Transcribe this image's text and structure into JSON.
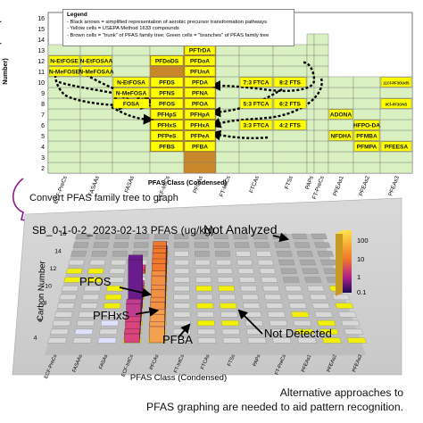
{
  "top_chart": {
    "y_axis_title": "Total Number of Carbons in Compound (Carbon Number)",
    "x_axis_title": "PFAS Class (Condensed)",
    "y_ticks": [
      "2",
      "3",
      "4",
      "5",
      "6",
      "7",
      "8",
      "9",
      "10",
      "11",
      "12",
      "13",
      "14",
      "15",
      "16"
    ],
    "x_categories": [
      "ECF-PreCs",
      "FASAAs",
      "FASAs",
      "ECF-IntCs",
      "PFCAs",
      "FT-IntCs",
      "FTCAs",
      "FTSs",
      "PAPs",
      "FT-PreCs",
      "PFEAs1",
      "PFEAs2",
      "PFEAs3"
    ],
    "legend": {
      "title": "Legend",
      "items": [
        "- Black arrows = simplified representation of aerobic precursor transformation pathways",
        "- Yellow cells = USEPA Method 1633 compounds",
        "- Brown cells = \"trunk\" of PFAS family tree; Green cells = \"branches\" of PFAS family tree"
      ]
    },
    "colors": {
      "green": "#d9f0c0",
      "yellow": "#ffff00",
      "brown": "#c8882a",
      "border": "#7a7a7a",
      "arrow": "#000000"
    },
    "compound_labels": [
      {
        "text": "N-EtFOSE",
        "col": "ECF-PreCs",
        "carbon": 12
      },
      {
        "text": "N-MeFOSE",
        "col": "ECF-PreCs",
        "carbon": 11
      },
      {
        "text": "N-EtFOSAA",
        "col": "FASAAs",
        "carbon": 12
      },
      {
        "text": "N-MeFOSAA",
        "col": "FASAAs",
        "carbon": 11
      },
      {
        "text": "N-EtFOSA",
        "col": "FASAs",
        "carbon": 10
      },
      {
        "text": "N-MeFOSA",
        "col": "FASAs",
        "carbon": 9
      },
      {
        "text": "FOSA",
        "col": "FASAs",
        "carbon": 8
      },
      {
        "text": "PFDoDS",
        "col": "ECF-IntCs",
        "carbon": 12
      },
      {
        "text": "PFDS",
        "col": "ECF-IntCs",
        "carbon": 10
      },
      {
        "text": "PFNS",
        "col": "ECF-IntCs",
        "carbon": 9
      },
      {
        "text": "PFOS",
        "col": "ECF-IntCs",
        "carbon": 8
      },
      {
        "text": "PFHpS",
        "col": "ECF-IntCs",
        "carbon": 7
      },
      {
        "text": "PFHxS",
        "col": "ECF-IntCs",
        "carbon": 6
      },
      {
        "text": "PFPeS",
        "col": "ECF-IntCs",
        "carbon": 5
      },
      {
        "text": "PFBS",
        "col": "ECF-IntCs",
        "carbon": 4
      },
      {
        "text": "PFTeDA",
        "col": "PFCAs",
        "carbon": 14
      },
      {
        "text": "PFTrDA",
        "col": "PFCAs",
        "carbon": 13
      },
      {
        "text": "PFDoA",
        "col": "PFCAs",
        "carbon": 12
      },
      {
        "text": "PFUnA",
        "col": "PFCAs",
        "carbon": 11
      },
      {
        "text": "PFDA",
        "col": "PFCAs",
        "carbon": 10
      },
      {
        "text": "PFNA",
        "col": "PFCAs",
        "carbon": 9
      },
      {
        "text": "PFOA",
        "col": "PFCAs",
        "carbon": 8
      },
      {
        "text": "PFHpA",
        "col": "PFCAs",
        "carbon": 7
      },
      {
        "text": "PFHxA",
        "col": "PFCAs",
        "carbon": 6
      },
      {
        "text": "PFPeA",
        "col": "PFCAs",
        "carbon": 5
      },
      {
        "text": "PFBA",
        "col": "PFCAs",
        "carbon": 4
      },
      {
        "text": "7:3 FTCA",
        "col": "FTCAs",
        "carbon": 10
      },
      {
        "text": "5:3 FTCA",
        "col": "FTCAs",
        "carbon": 8
      },
      {
        "text": "3:3 FTCA",
        "col": "FTCAs",
        "carbon": 6
      },
      {
        "text": "8:2 FTS",
        "col": "FTSs",
        "carbon": 10
      },
      {
        "text": "6:2 FTS",
        "col": "FTSs",
        "carbon": 8
      },
      {
        "text": "4:2 FTS",
        "col": "FTSs",
        "carbon": 6
      },
      {
        "text": "11Cl-PF3OUdS",
        "col": "PFEAs3",
        "carbon": 10
      },
      {
        "text": "9Cl-PF3ONS",
        "col": "PFEAs3",
        "carbon": 8
      },
      {
        "text": "ADONA",
        "col": "PFEAs1",
        "carbon": 7
      },
      {
        "text": "HFPO-DA",
        "col": "PFEAs2",
        "carbon": 6
      },
      {
        "text": "NFDHA",
        "col": "PFEAs1",
        "carbon": 5
      },
      {
        "text": "PFMBA",
        "col": "PFEAs2",
        "carbon": 5
      },
      {
        "text": "PFMPA",
        "col": "PFEAs2",
        "carbon": 4
      },
      {
        "text": "PFEESA",
        "col": "PFEAs3",
        "carbon": 4
      }
    ]
  },
  "caption_convert": "Convert PFAS family tree to graph",
  "graph3d": {
    "title": "SB_0-1-0-2_2023-02-13 PFAS (ug/kg)",
    "y_axis_title": "Carbon Number",
    "x_axis_title": "PFAS Class (Condensed)",
    "y_ticks": [
      "4",
      "6",
      "8",
      "10",
      "12",
      "14",
      "16"
    ],
    "x_categories": [
      "ECF-PreCs",
      "FASAAs",
      "FASAs",
      "ECF-IntCs",
      "PFCAs",
      "FT-IntCs",
      "FTCAs",
      "FTSs",
      "PAPs",
      "FT-PreCs",
      "PFEAs1",
      "PFEAs2",
      "PFEAs3"
    ],
    "colorbar_ticks": [
      "100",
      "10",
      "1",
      "0.1"
    ],
    "annotations": {
      "not_analyzed": "Not Analyzed",
      "pfos": "PFOS",
      "pfhxs": "PFHxS",
      "pfba": "PFBA",
      "not_detected": "Not Detected"
    },
    "detected_bars": [
      {
        "compound": "PFOS",
        "carbon": 8,
        "level": 1.0
      },
      {
        "compound": "PFHxS",
        "carbon": 6,
        "level": 0.45
      }
    ]
  },
  "caption_bottom": [
    "Alternative approaches to",
    "PFAS graphing are needed to aid pattern recognition."
  ]
}
